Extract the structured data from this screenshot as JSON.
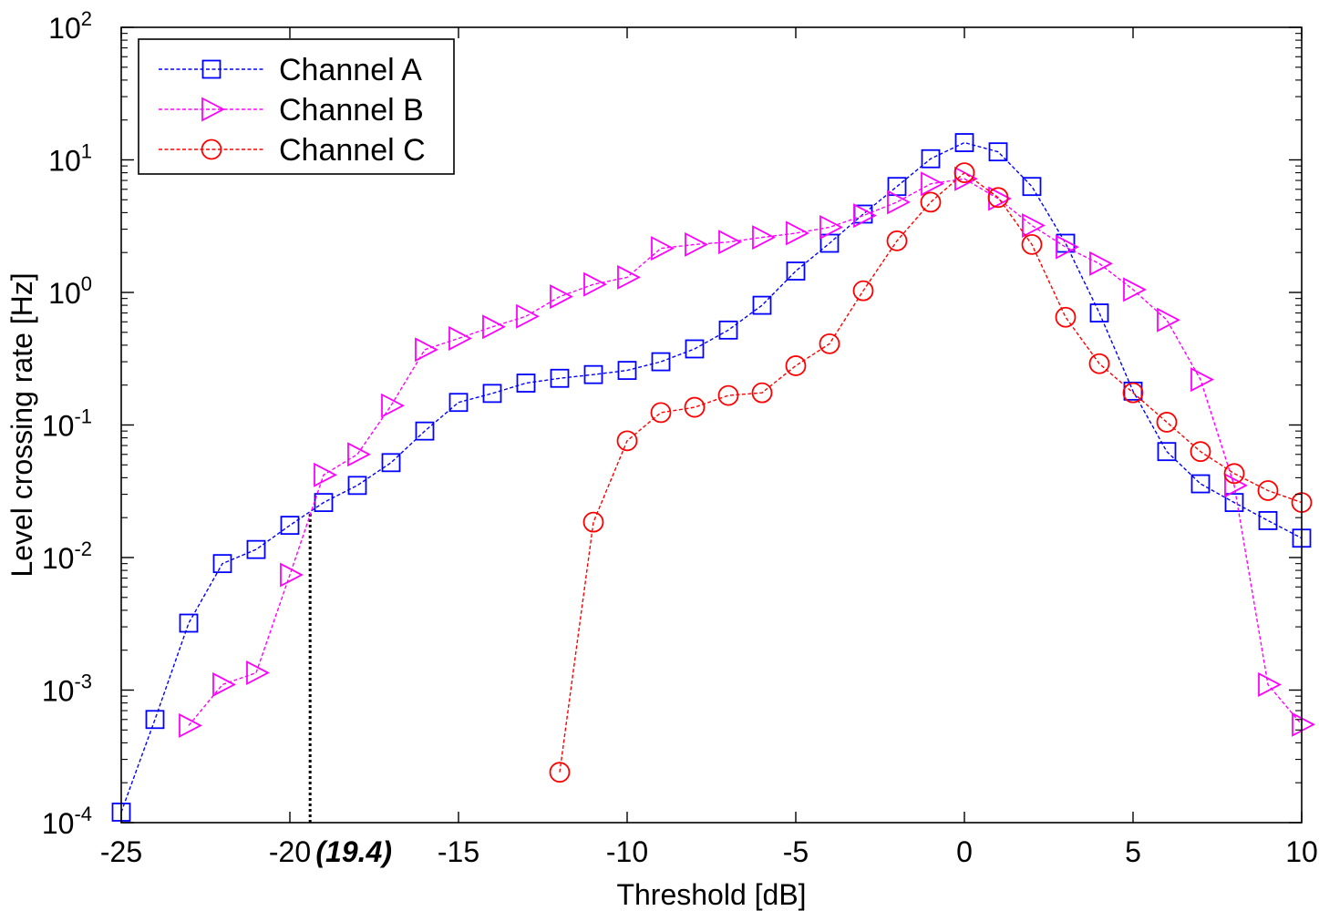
{
  "chart_data": {
    "type": "line",
    "title": "",
    "xlabel": "Threshold [dB]",
    "ylabel": "Level crossing rate [Hz]",
    "xlim": [
      -25,
      10
    ],
    "ylim": [
      0.0001,
      100
    ],
    "yscale": "log",
    "x_ticks": [
      {
        "value": -25,
        "label": "-25"
      },
      {
        "value": -20,
        "label": "-20"
      },
      {
        "value": -15,
        "label": "-15"
      },
      {
        "value": -10,
        "label": "-10"
      },
      {
        "value": -5,
        "label": "-5"
      },
      {
        "value": 0,
        "label": "0"
      },
      {
        "value": 5,
        "label": "5"
      },
      {
        "value": 10,
        "label": "10"
      }
    ],
    "y_ticks": [
      {
        "value": 0.0001,
        "base": "10",
        "exp": "-4"
      },
      {
        "value": 0.001,
        "base": "10",
        "exp": "-3"
      },
      {
        "value": 0.01,
        "base": "10",
        "exp": "-2"
      },
      {
        "value": 0.1,
        "base": "10",
        "exp": "-1"
      },
      {
        "value": 1,
        "base": "10",
        "exp": "0"
      },
      {
        "value": 10,
        "base": "10",
        "exp": "1"
      },
      {
        "value": 100,
        "base": "10",
        "exp": "2"
      }
    ],
    "grid": false,
    "legend_position": "top-left",
    "series": [
      {
        "name": "Channel A",
        "color": "#0000ff",
        "marker": "square",
        "x": [
          -25,
          -24,
          -23,
          -22,
          -21,
          -20,
          -19,
          -18,
          -17,
          -16,
          -15,
          -14,
          -13,
          -12,
          -11,
          -10,
          -9,
          -8,
          -7,
          -6,
          -5,
          -4,
          -3,
          -2,
          -1,
          0,
          1,
          2,
          3,
          4,
          5,
          6,
          7,
          8,
          9,
          10
        ],
        "y": [
          0.00012,
          0.0006,
          0.0032,
          0.009,
          0.0115,
          0.0175,
          0.026,
          0.035,
          0.052,
          0.09,
          0.148,
          0.173,
          0.207,
          0.225,
          0.24,
          0.258,
          0.3,
          0.375,
          0.52,
          0.8,
          1.45,
          2.35,
          3.9,
          6.3,
          10.2,
          13.5,
          11.5,
          6.3,
          2.35,
          0.7,
          0.18,
          0.063,
          0.036,
          0.026,
          0.019,
          0.014
        ]
      },
      {
        "name": "Channel B",
        "color": "#ff00ff",
        "marker": "triangle-right",
        "x": [
          -23,
          -22,
          -21,
          -20,
          -19,
          -18,
          -17,
          -16,
          -15,
          -14,
          -13,
          -12,
          -11,
          -10,
          -9,
          -8,
          -7,
          -6,
          -5,
          -4,
          -3,
          -2,
          -1,
          0,
          1,
          2,
          3,
          4,
          5,
          6,
          7,
          8,
          9,
          10
        ],
        "y": [
          0.00054,
          0.0011,
          0.00135,
          0.0074,
          0.042,
          0.06,
          0.14,
          0.37,
          0.45,
          0.55,
          0.66,
          0.93,
          1.15,
          1.3,
          2.15,
          2.3,
          2.4,
          2.6,
          2.8,
          3.1,
          3.8,
          4.8,
          6.6,
          7.2,
          5.1,
          3.2,
          2.2,
          1.65,
          1.05,
          0.62,
          0.22,
          0.035,
          0.0011,
          0.00055
        ]
      },
      {
        "name": "Channel C",
        "color": "#ff0000",
        "marker": "circle",
        "x": [
          -12,
          -11,
          -10,
          -9,
          -8,
          -7,
          -6,
          -5,
          -4,
          -3,
          -2,
          -1,
          0,
          1,
          2,
          3,
          4,
          5,
          6,
          7,
          8,
          9,
          10
        ],
        "y": [
          0.00024,
          0.0185,
          0.076,
          0.124,
          0.136,
          0.167,
          0.175,
          0.28,
          0.41,
          1.03,
          2.45,
          4.8,
          8.0,
          5.2,
          2.3,
          0.65,
          0.29,
          0.175,
          0.105,
          0.063,
          0.043,
          0.032,
          0.026
        ]
      }
    ],
    "annotations": [
      {
        "text": "(19.4)",
        "x": -19.4,
        "y_from": 0.0001,
        "y_to": 0.022,
        "style": "dotted"
      }
    ]
  }
}
